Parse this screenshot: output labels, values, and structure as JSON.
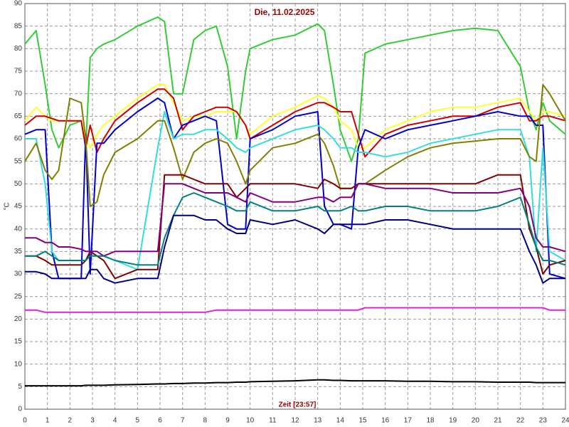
{
  "chart_data": {
    "type": "line",
    "title": "Die, 11.02.2025",
    "xlabel": "Zeit [23:57]",
    "ylabel": "°C",
    "x": [
      0,
      0.5,
      0.9,
      1.2,
      1.5,
      2,
      2.5,
      2.7,
      2.9,
      3.2,
      3.5,
      4,
      5,
      5.9,
      6.2,
      6.6,
      7,
      7.5,
      8,
      8.5,
      9,
      9.4,
      9.8,
      10,
      11,
      12,
      13,
      13.3,
      13.7,
      14,
      14.5,
      14.8,
      15.1,
      16,
      17,
      18,
      19,
      20,
      21,
      22,
      22.4,
      22.7,
      23,
      23.3,
      24
    ],
    "series": [
      {
        "color": "#33cc33",
        "values": [
          81,
          84,
          72,
          62,
          58,
          63,
          64,
          58,
          78,
          80,
          81,
          82,
          85,
          87,
          86,
          70,
          70,
          82,
          84,
          85,
          76,
          60,
          75,
          80,
          82,
          83,
          85.5,
          84,
          72,
          62,
          55,
          60,
          79,
          81,
          82,
          83,
          84,
          84.5,
          84,
          76,
          66,
          62,
          68,
          64,
          61
        ]
      },
      {
        "color": "#ffff33",
        "values": [
          64,
          67,
          65,
          64,
          64,
          64,
          64,
          60,
          58,
          61,
          63,
          65,
          69,
          72,
          72,
          68,
          64,
          65,
          65,
          66,
          66,
          66,
          63,
          61,
          65,
          67,
          69.5,
          69,
          67,
          64,
          62,
          58,
          58,
          62,
          64,
          66,
          67,
          67,
          68,
          69,
          66,
          64,
          66,
          66,
          65
        ]
      },
      {
        "color": "#cc0000",
        "values": [
          63,
          65,
          65,
          64.5,
          64,
          64,
          64,
          58,
          63,
          57,
          60,
          64,
          68,
          71,
          71,
          69,
          62,
          65,
          66,
          67,
          67,
          66,
          63,
          60,
          63,
          66,
          68,
          68,
          67,
          66,
          66,
          61,
          56,
          61,
          63,
          64,
          65,
          65,
          67,
          68,
          64,
          64,
          65,
          65,
          64
        ]
      },
      {
        "color": "#0000cc",
        "values": [
          61,
          62,
          62,
          35,
          29,
          29,
          29,
          61,
          30,
          59,
          59,
          62,
          66,
          69,
          68,
          60,
          63,
          64,
          65,
          64,
          41,
          40,
          40,
          60,
          62,
          65,
          66,
          45,
          41,
          41,
          40,
          58,
          62,
          60,
          62,
          63,
          64,
          65,
          66,
          65,
          65,
          63,
          63,
          30,
          29
        ]
      },
      {
        "color": "#33dddd",
        "values": [
          60,
          60,
          50,
          35,
          33,
          33,
          33,
          33,
          35,
          34,
          34,
          33,
          31,
          58,
          66,
          60,
          61,
          61,
          62,
          62,
          60,
          58,
          57,
          58,
          60,
          62,
          63,
          62,
          60,
          58,
          58,
          57,
          57,
          56,
          57,
          59,
          60,
          61,
          62,
          62,
          56,
          35,
          58,
          35,
          33
        ]
      },
      {
        "color": "#808000",
        "values": [
          55,
          59,
          53,
          51,
          53,
          69,
          68,
          60,
          45,
          46,
          52,
          57,
          60,
          64,
          64,
          58,
          51,
          57,
          59,
          60,
          59,
          55,
          50,
          53,
          58,
          59,
          61,
          59,
          54,
          49,
          49,
          50,
          50,
          53,
          56,
          58,
          59,
          59.5,
          60,
          60,
          56,
          55,
          72,
          70,
          64
        ]
      },
      {
        "color": "#800000",
        "values": [
          34,
          34,
          33,
          32,
          32,
          32,
          32,
          33,
          35,
          34,
          33,
          29,
          31,
          31,
          52,
          52,
          52,
          51,
          50,
          50,
          50,
          47,
          49,
          50,
          50,
          50,
          49,
          51,
          50,
          49,
          49,
          50,
          50,
          50,
          50,
          50,
          50,
          50,
          52,
          52,
          40,
          36,
          30,
          32,
          33
        ]
      },
      {
        "color": "#800080",
        "values": [
          38,
          38,
          37,
          37,
          36,
          36,
          35.5,
          35,
          35,
          35,
          34,
          35,
          35,
          35,
          50,
          50,
          50,
          49,
          48,
          48,
          48,
          47,
          46,
          48,
          46,
          46,
          47,
          47,
          46,
          47,
          47,
          50,
          50,
          49,
          49,
          49,
          48,
          48,
          48,
          49,
          45,
          38,
          36,
          36,
          35
        ]
      },
      {
        "color": "#008080",
        "values": [
          34,
          34,
          35,
          34,
          33,
          33,
          33,
          33,
          34,
          34,
          34,
          33,
          32,
          32,
          38,
          43,
          47,
          48,
          47,
          46,
          45,
          44,
          44,
          46,
          44,
          44,
          45,
          44,
          44,
          44,
          45,
          44,
          44,
          45,
          45,
          44,
          44,
          44,
          45,
          47,
          41,
          36,
          33,
          33,
          32
        ]
      },
      {
        "color": "#000080",
        "values": [
          30.5,
          30.5,
          30,
          29,
          29,
          29,
          29,
          29,
          31,
          31,
          29,
          28,
          29,
          29,
          36,
          43,
          43,
          43,
          42,
          42,
          40,
          39,
          39,
          42,
          41,
          42,
          40,
          39,
          41,
          41,
          41,
          41,
          41,
          42,
          42,
          41,
          40,
          40,
          40,
          40,
          35,
          32,
          28,
          29,
          29
        ]
      },
      {
        "color": "#dd22dd",
        "values": [
          22,
          22,
          21.5,
          21.5,
          21.5,
          21.5,
          21.5,
          21.5,
          21.5,
          21.5,
          21.5,
          21.5,
          21.5,
          21.5,
          21.5,
          21.5,
          21.5,
          21.5,
          21.5,
          22,
          22,
          22,
          22,
          22,
          22,
          22,
          22,
          22,
          22,
          22,
          22,
          22,
          22.5,
          22.5,
          22.5,
          22.5,
          22.5,
          22.5,
          22.5,
          22.5,
          22.5,
          22.5,
          22.5,
          22,
          22
        ]
      },
      {
        "color": "#000000",
        "values": [
          5.2,
          5.2,
          5.2,
          5.2,
          5.2,
          5.2,
          5.2,
          5.3,
          5.3,
          5.3,
          5.3,
          5.4,
          5.5,
          5.6,
          5.6,
          5.7,
          5.7,
          5.8,
          5.8,
          5.9,
          5.9,
          6,
          6,
          6.1,
          6.2,
          6.3,
          6.5,
          6.5,
          6.4,
          6.4,
          6.3,
          6.3,
          6.3,
          6.3,
          6.2,
          6.2,
          6.1,
          6.1,
          6,
          6,
          6,
          5.9,
          5.9,
          5.9,
          5.9
        ]
      }
    ],
    "xlim": [
      0,
      24
    ],
    "ylim": [
      0,
      90
    ],
    "xticks": [
      0,
      1,
      2,
      3,
      4,
      5,
      6,
      7,
      8,
      9,
      10,
      11,
      12,
      13,
      14,
      15,
      16,
      17,
      18,
      19,
      20,
      21,
      22,
      23,
      24
    ],
    "yticks": [
      0,
      5,
      10,
      15,
      20,
      25,
      30,
      35,
      40,
      45,
      50,
      55,
      60,
      65,
      70,
      75,
      80,
      85,
      90
    ],
    "grid": true
  }
}
